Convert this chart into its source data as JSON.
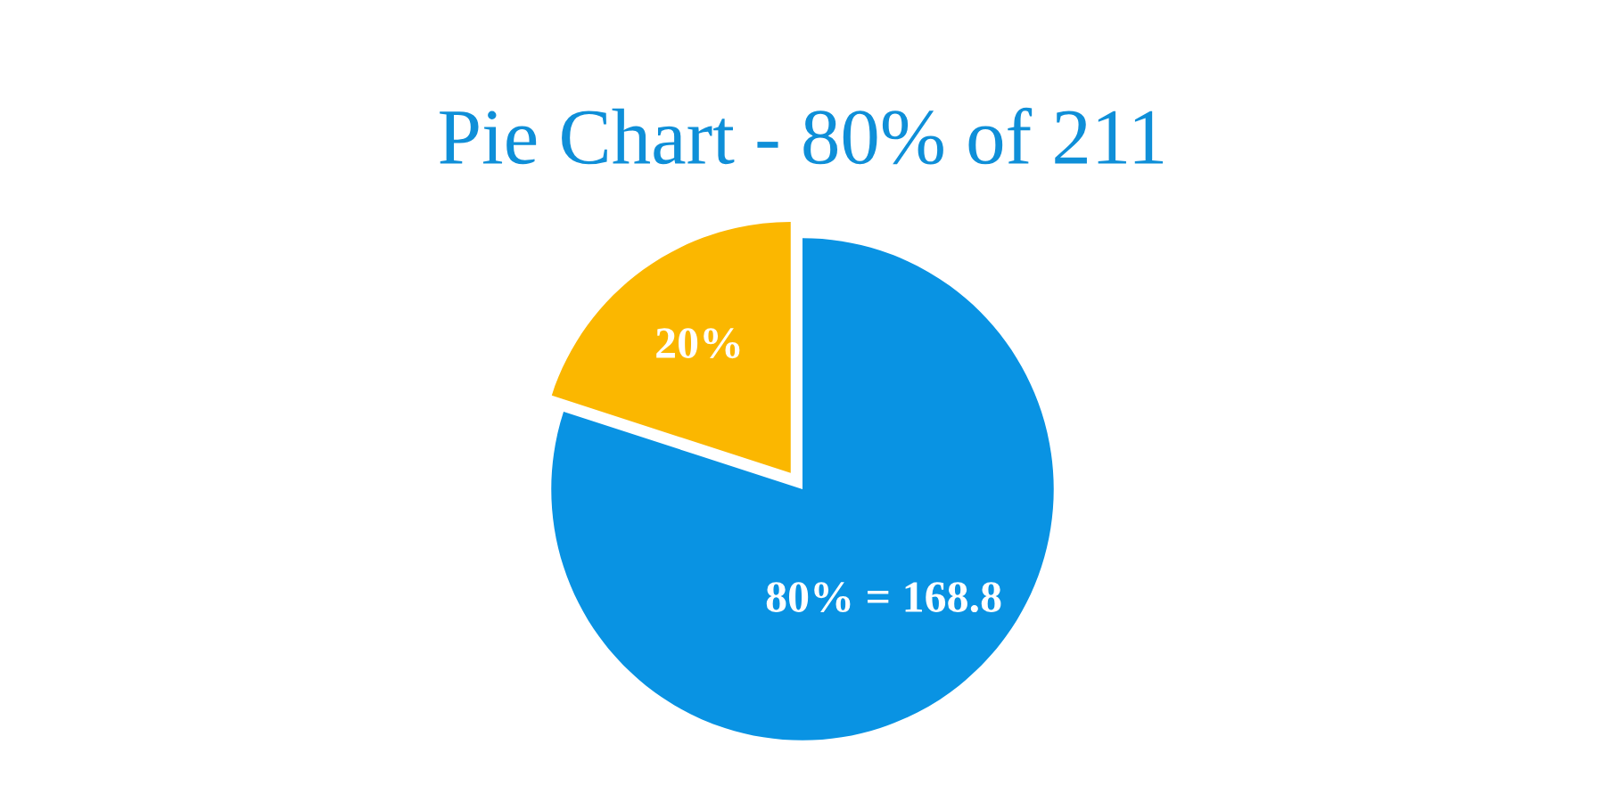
{
  "chart_data": {
    "type": "pie",
    "title": "Pie Chart - 80% of 211",
    "categories": [
      null,
      null
    ],
    "values": [
      80,
      20
    ],
    "colors": [
      "#0993e3",
      "#fbb700"
    ],
    "value_labels": [
      "80% = 168.8",
      "20%"
    ]
  }
}
